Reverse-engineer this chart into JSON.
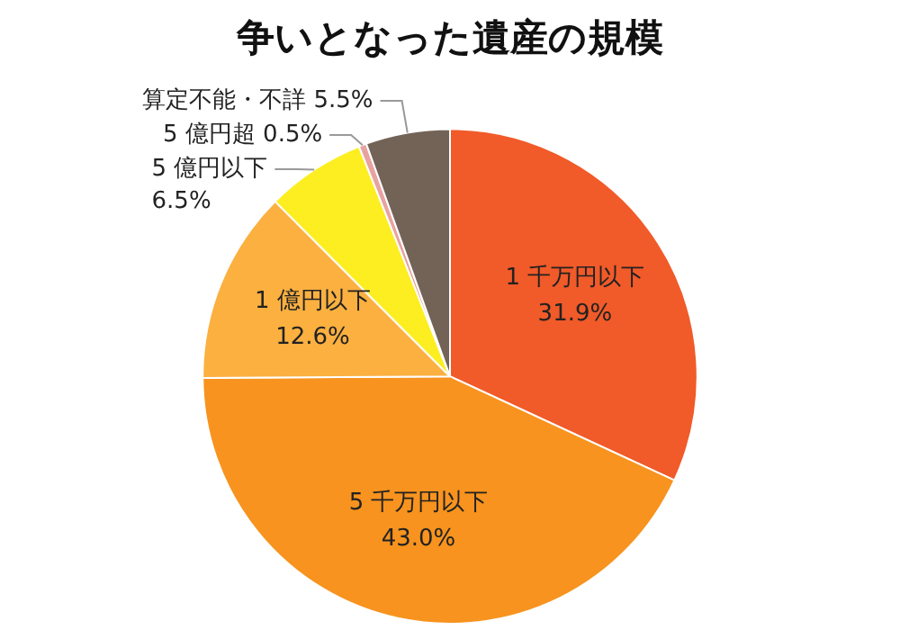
{
  "chart_data": {
    "type": "pie",
    "title": "争いとなった遺産の規模",
    "categories": [
      "1 千万円以下",
      "5 千万円以下",
      "1 億円以下",
      "5 億円以下",
      "5 億円超",
      "算定不能・不詳"
    ],
    "values": [
      31.9,
      43.0,
      12.6,
      6.5,
      0.5,
      5.5
    ],
    "colors": [
      "#f15a29",
      "#f7931e",
      "#fbb040",
      "#fcee21",
      "#e8a3a0",
      "#736357"
    ],
    "value_labels": [
      "31.9%",
      "43.0%",
      "12.6%",
      "6.5%",
      "0.5%",
      "5.5%"
    ],
    "legend": false
  }
}
